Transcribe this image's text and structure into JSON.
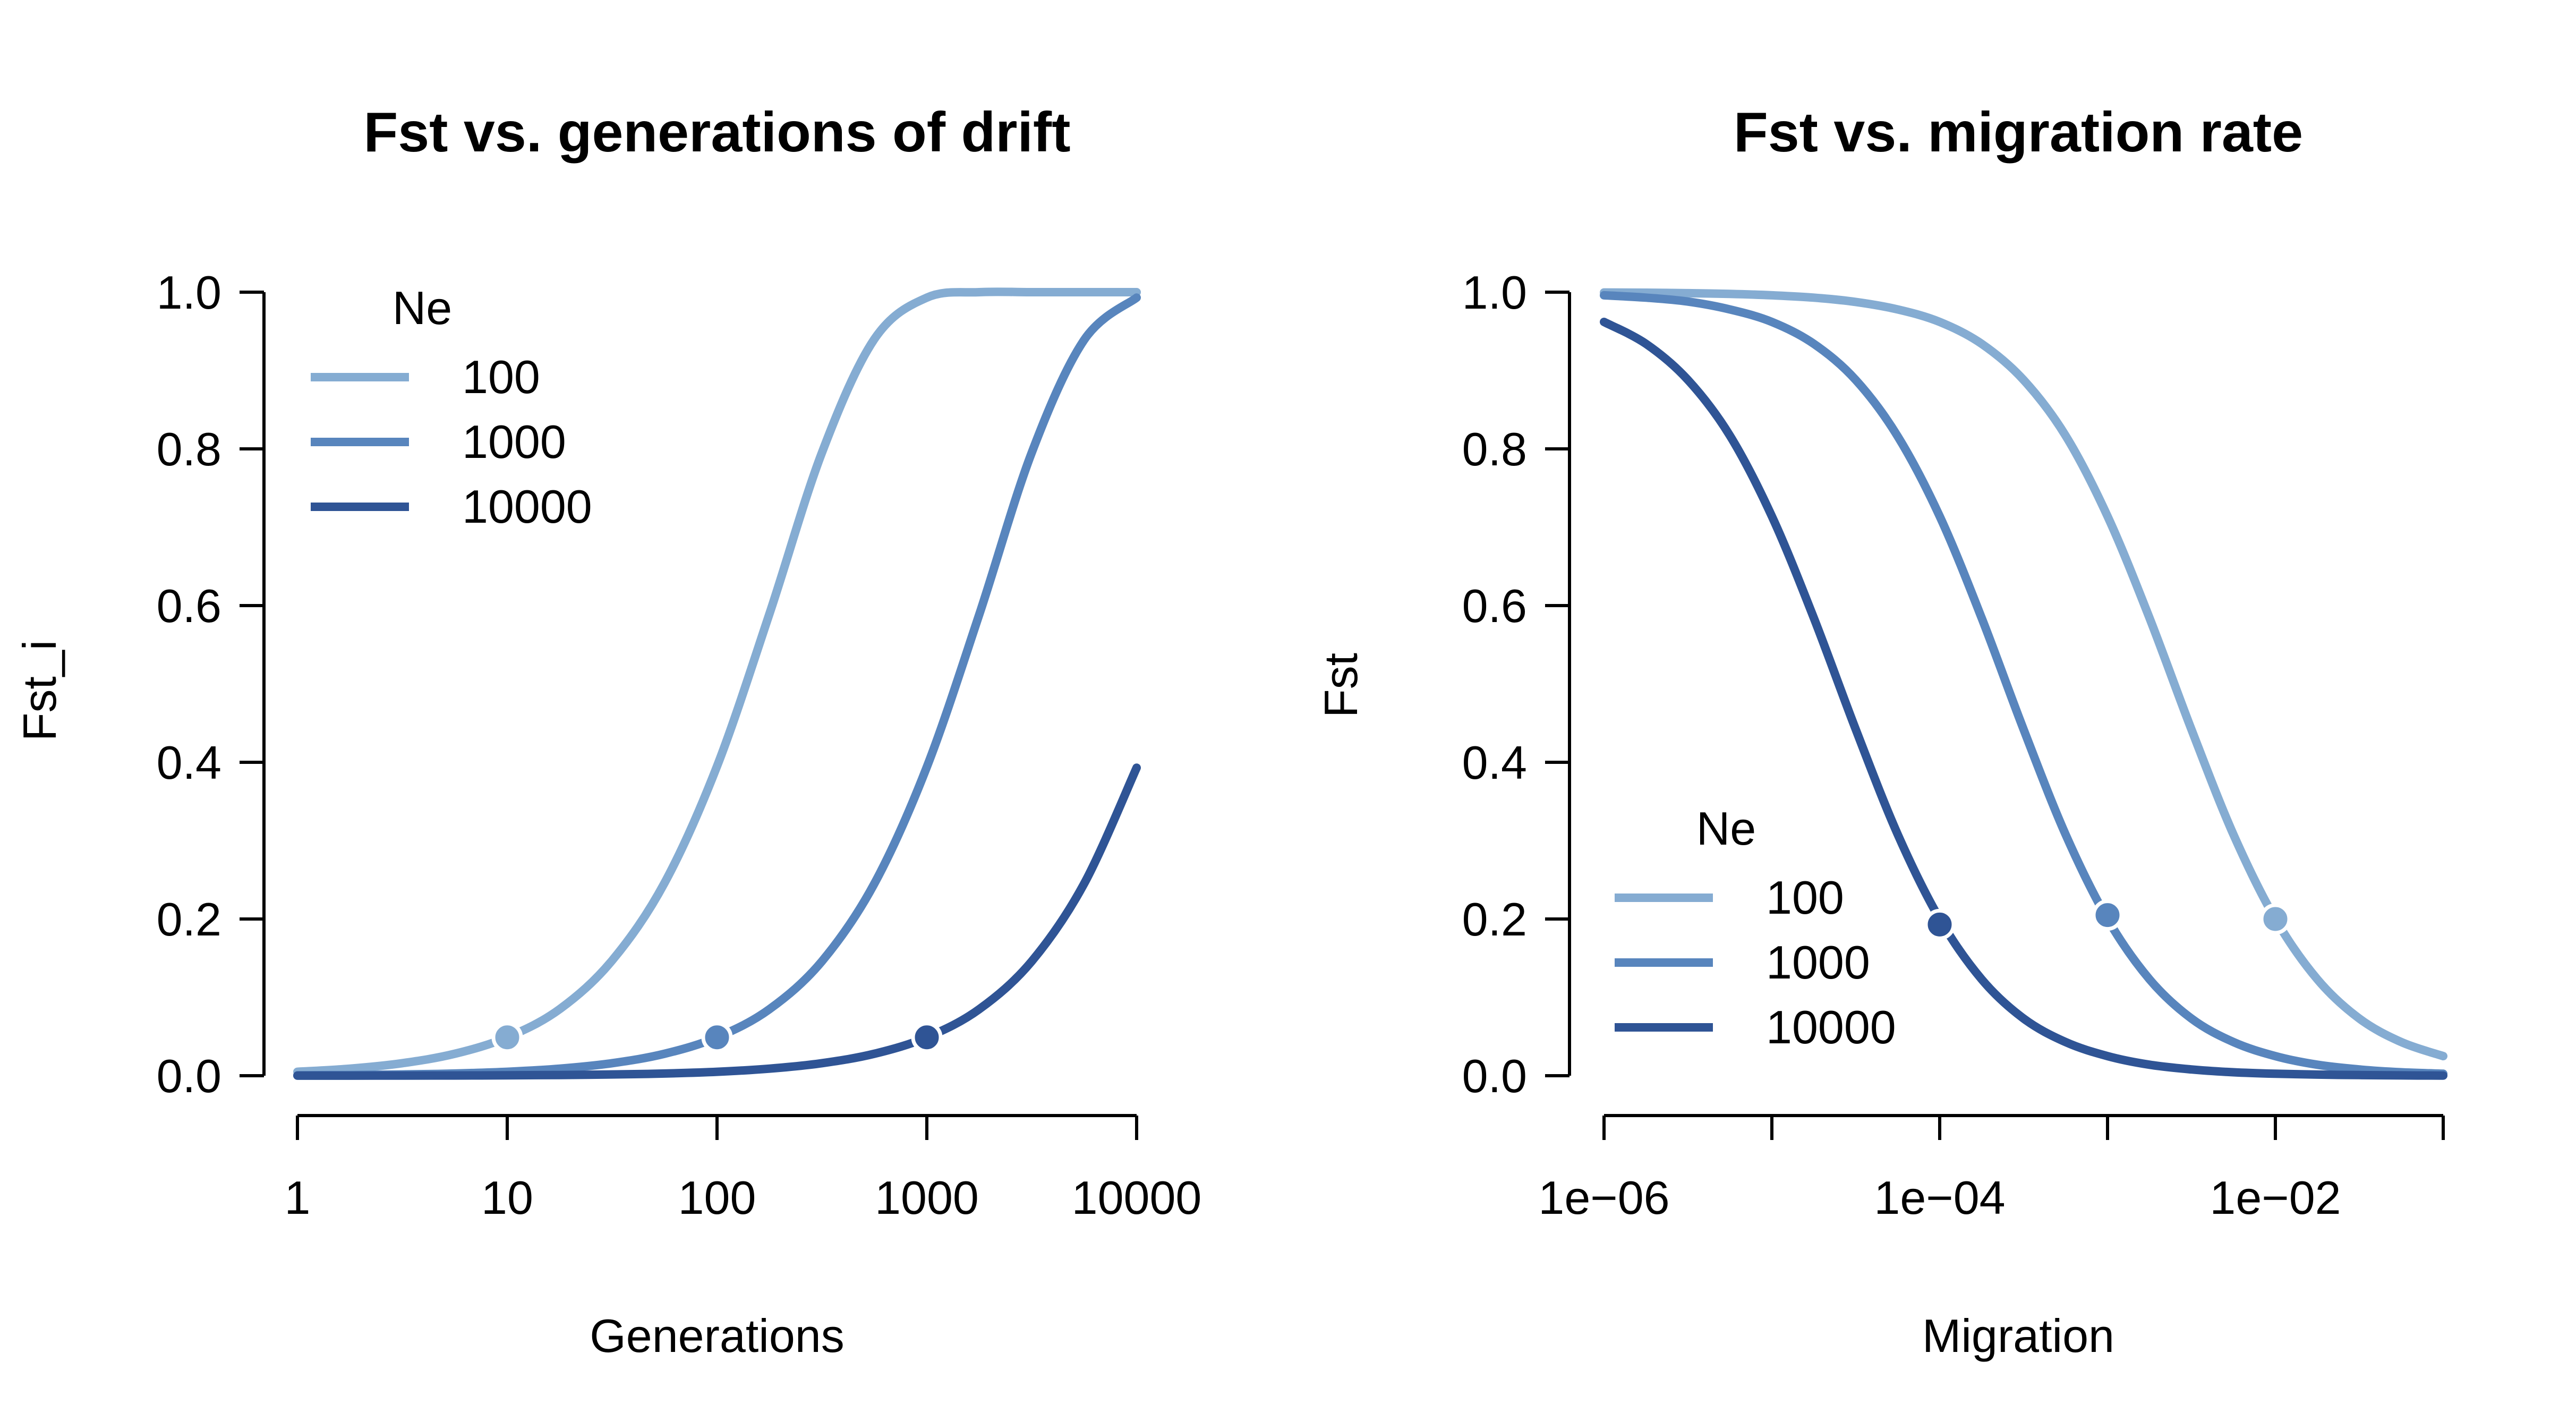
{
  "colors": {
    "Ne100": "#85acd2",
    "Ne1000": "#5885bd",
    "Ne10000": "#2f5495"
  },
  "chart_data": [
    {
      "type": "line",
      "title": "Fst vs. generations of drift",
      "xlabel": "Generations",
      "ylabel": "Fst_i",
      "xscale": "log10",
      "xlim": [
        1,
        10000
      ],
      "ylim": [
        0,
        1
      ],
      "xticks": [
        1,
        10,
        100,
        1000,
        10000
      ],
      "xtick_labels": [
        "1",
        "10",
        "100",
        "1000",
        "10000"
      ],
      "yticks": [
        0,
        0.2,
        0.4,
        0.6,
        0.8,
        1
      ],
      "ytick_labels": [
        "0.0",
        "0.2",
        "0.4",
        "0.6",
        "0.8",
        "1.0"
      ],
      "grid": false,
      "legend": {
        "title": "Ne",
        "position": "top-left",
        "entries": [
          "100",
          "1000",
          "10000"
        ]
      },
      "x": [
        1,
        1.78,
        3.16,
        5.62,
        10,
        17.8,
        31.6,
        56.2,
        100,
        178,
        316,
        562,
        1000,
        1780,
        3160,
        5620,
        10000
      ],
      "series": [
        {
          "name": "100",
          "color": "#85acd2",
          "values": [
            0.005,
            0.009,
            0.016,
            0.028,
            0.049,
            0.085,
            0.147,
            0.246,
            0.395,
            0.59,
            0.795,
            0.94,
            0.993,
            1.0,
            1.0,
            1.0,
            1.0
          ]
        },
        {
          "name": "1000",
          "color": "#5885bd",
          "values": [
            0.0005,
            0.0009,
            0.0016,
            0.0028,
            0.005,
            0.009,
            0.016,
            0.028,
            0.049,
            0.085,
            0.146,
            0.245,
            0.394,
            0.589,
            0.795,
            0.939,
            0.993
          ]
        },
        {
          "name": "10000",
          "color": "#2f5495",
          "values": [
            0.0001,
            0.0001,
            0.0002,
            0.0003,
            0.0005,
            0.0009,
            0.0016,
            0.0028,
            0.005,
            0.009,
            0.016,
            0.028,
            0.049,
            0.085,
            0.146,
            0.245,
            0.393
          ]
        }
      ],
      "points": [
        {
          "series": "100",
          "x": 10,
          "y": 0.049
        },
        {
          "series": "1000",
          "x": 100,
          "y": 0.049
        },
        {
          "series": "10000",
          "x": 1000,
          "y": 0.049
        }
      ]
    },
    {
      "type": "line",
      "title": "Fst vs. migration rate",
      "xlabel": "Migration",
      "ylabel": "Fst",
      "xscale": "log10",
      "xlim": [
        1e-06,
        0.1
      ],
      "ylim": [
        0,
        1
      ],
      "xticks": [
        1e-06,
        1e-05,
        0.0001,
        0.001,
        0.01,
        0.1
      ],
      "xtick_labels": [
        "1e−06",
        "",
        "1e−04",
        "",
        "1e−02",
        ""
      ],
      "yticks": [
        0,
        0.2,
        0.4,
        0.6,
        0.8,
        1
      ],
      "ytick_labels": [
        "0.0",
        "0.2",
        "0.4",
        "0.6",
        "0.8",
        "1.0"
      ],
      "grid": false,
      "legend": {
        "title": "Ne",
        "position": "bottom-left",
        "entries": [
          "100",
          "1000",
          "10000"
        ]
      },
      "x": [
        1e-06,
        1.78e-06,
        3.16e-06,
        5.62e-06,
        1e-05,
        1.78e-05,
        3.16e-05,
        5.62e-05,
        0.0001,
        0.000178,
        0.000316,
        0.000562,
        0.001,
        0.00178,
        0.00316,
        0.00562,
        0.01,
        0.0178,
        0.0316,
        0.0562,
        0.1
      ],
      "series": [
        {
          "name": "100",
          "color": "#85acd2",
          "values": [
            0.9996,
            0.9993,
            0.9987,
            0.9978,
            0.996,
            0.993,
            0.9875,
            0.978,
            0.962,
            0.934,
            0.888,
            0.817,
            0.714,
            0.584,
            0.442,
            0.308,
            0.2,
            0.123,
            0.073,
            0.043,
            0.025
          ]
        },
        {
          "name": "1000",
          "color": "#5885bd",
          "values": [
            0.996,
            0.993,
            0.988,
            0.978,
            0.962,
            0.934,
            0.888,
            0.816,
            0.714,
            0.584,
            0.442,
            0.308,
            0.2,
            0.123,
            0.073,
            0.043,
            0.025,
            0.014,
            0.008,
            0.0044,
            0.0025
          ]
        },
        {
          "name": "10000",
          "color": "#2f5495",
          "values": [
            0.962,
            0.934,
            0.888,
            0.817,
            0.714,
            0.584,
            0.442,
            0.308,
            0.2,
            0.123,
            0.073,
            0.043,
            0.025,
            0.014,
            0.008,
            0.0044,
            0.0025,
            0.0014,
            0.0008,
            0.0004,
            0.0002
          ]
        }
      ],
      "points": [
        {
          "series": "100",
          "x": 0.01,
          "y": 0.2
        },
        {
          "series": "1000",
          "x": 0.001,
          "y": 0.205
        },
        {
          "series": "10000",
          "x": 0.0001,
          "y": 0.193
        }
      ]
    }
  ]
}
